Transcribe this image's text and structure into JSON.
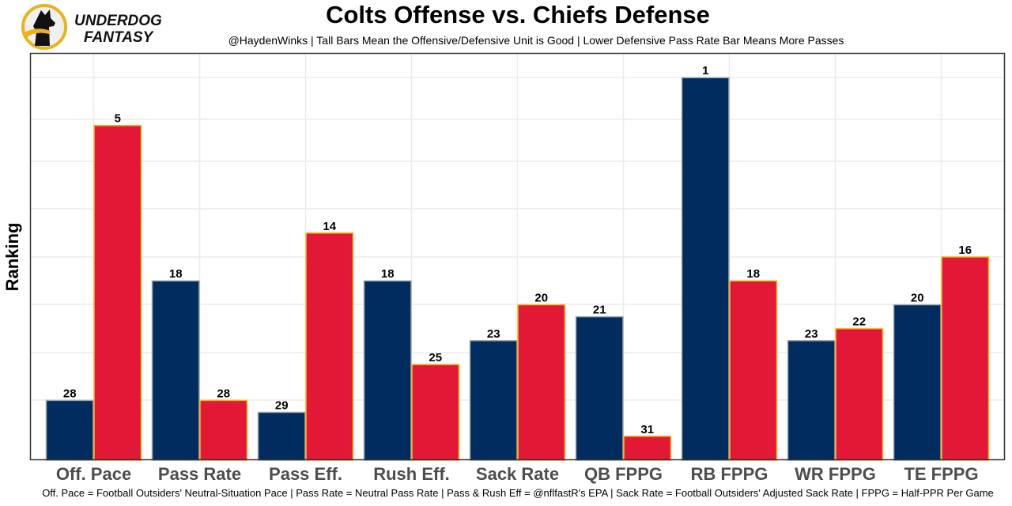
{
  "logo": {
    "line1": "UNDERDOG",
    "line2": "FANTASY",
    "icon": "underdog-dog-logo-icon"
  },
  "chart_data": {
    "type": "bar",
    "title": "Colts Offense vs. Chiefs Defense",
    "subtitle": "@HaydenWinks | Tall Bars Mean the Offensive/Defensive Unit is Good | Lower Defensive Pass Rate Bar Means More Passes",
    "footer": "Off. Pace = Football Outsiders' Neutral-Situation Pace | Pass Rate = Neutral Pass Rate | Pass & Rush Eff = @nflfastR's EPA | Sack Rate = Football Outsiders' Adjusted Sack Rate | FPPG = Half-PPR Per Game",
    "xlabel": "",
    "ylabel": "Ranking",
    "y_note": "Bar height = 33 - rank (rank 1 tallest); y tick labels hidden",
    "ylim": [
      0,
      34
    ],
    "grid": true,
    "legend": "none",
    "categories": [
      "Off. Pace",
      "Pass Rate",
      "Pass Eff.",
      "Rush Eff.",
      "Sack Rate",
      "QB FPPG",
      "RB FPPG",
      "WR FPPG",
      "TE FPPG"
    ],
    "series": [
      {
        "name": "Colts Offense",
        "color": "#002C5F",
        "border": "#A2AAAD",
        "values": [
          28,
          18,
          29,
          18,
          23,
          21,
          1,
          23,
          20
        ]
      },
      {
        "name": "Chiefs Defense",
        "color": "#E31837",
        "border": "#FFB81C",
        "values": [
          5,
          28,
          14,
          25,
          20,
          31,
          18,
          22,
          16
        ]
      }
    ]
  }
}
